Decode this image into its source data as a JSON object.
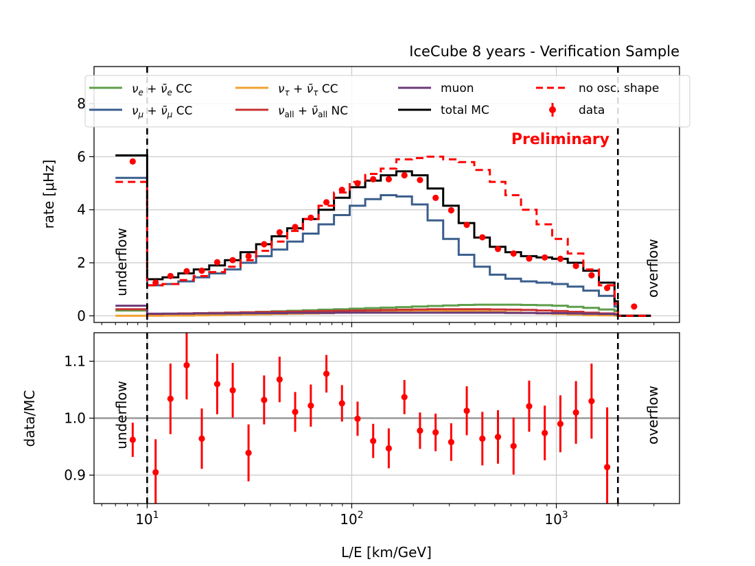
{
  "chart_data": [
    {
      "type": "line",
      "title": "IceCube 8 years - Verification Sample",
      "annotation": "Preliminary",
      "xlabel": "L/E [km/GeV]",
      "ylabel": "rate [μHz]",
      "xscale": "log",
      "xlim": [
        5.5,
        4000
      ],
      "ylim": [
        -0.25,
        9.4
      ],
      "yticks": [
        0,
        2,
        4,
        6,
        8
      ],
      "xticks": [
        {
          "value": 10,
          "base": "10",
          "exp": "1"
        },
        {
          "value": 100,
          "base": "10",
          "exp": "2"
        },
        {
          "value": 1000,
          "base": "10",
          "exp": "3"
        }
      ],
      "grid": true,
      "legend_position": "top",
      "region_labels": {
        "left": "underflow",
        "right": "overflow"
      },
      "region_boundaries": [
        10,
        2000
      ],
      "bin_edges": [
        7,
        10,
        11.9,
        14.2,
        16.9,
        20.1,
        24,
        28.6,
        34.1,
        40.6,
        48.4,
        57.7,
        68.8,
        81.9,
        97.7,
        116.4,
        138.7,
        165.3,
        197,
        234.8,
        279.8,
        333.4,
        397.3,
        473.4,
        564.1,
        672.2,
        801,
        954.5,
        1137.4,
        1355.4,
        1615.1,
        1924.6,
        2000,
        2900
      ],
      "series": [
        {
          "name": "νe + ν̄e CC",
          "color": "#5e9e4a",
          "style": "step",
          "values": [
            0.2,
            0.06,
            0.07,
            0.08,
            0.09,
            0.1,
            0.12,
            0.13,
            0.15,
            0.17,
            0.19,
            0.21,
            0.23,
            0.25,
            0.27,
            0.29,
            0.31,
            0.33,
            0.35,
            0.37,
            0.39,
            0.41,
            0.42,
            0.42,
            0.42,
            0.41,
            0.4,
            0.38,
            0.34,
            0.3,
            0.24,
            0.18,
            0.01
          ]
        },
        {
          "name": "νμ + ν̄μ CC",
          "color": "#3a5e8c",
          "style": "step",
          "values": [
            5.2,
            1.15,
            1.2,
            1.3,
            1.45,
            1.6,
            1.75,
            2.0,
            2.25,
            2.5,
            2.8,
            3.1,
            3.45,
            3.8,
            4.15,
            4.4,
            4.55,
            4.5,
            4.2,
            3.6,
            2.9,
            2.3,
            1.85,
            1.55,
            1.4,
            1.3,
            1.25,
            1.2,
            1.1,
            0.95,
            0.75,
            0.35,
            0.0
          ]
        },
        {
          "name": "ντ + ν̄τ CC",
          "color": "#f0a030",
          "style": "step",
          "values": [
            0.0,
            0.0,
            0.01,
            0.01,
            0.02,
            0.03,
            0.04,
            0.05,
            0.06,
            0.07,
            0.08,
            0.09,
            0.1,
            0.12,
            0.14,
            0.16,
            0.18,
            0.19,
            0.2,
            0.2,
            0.19,
            0.18,
            0.17,
            0.15,
            0.13,
            0.11,
            0.09,
            0.07,
            0.05,
            0.03,
            0.02,
            0.01,
            0.0
          ]
        },
        {
          "name": "νall + ν̄all NC",
          "color": "#c83232",
          "style": "step",
          "values": [
            0.25,
            0.07,
            0.08,
            0.09,
            0.1,
            0.11,
            0.12,
            0.13,
            0.14,
            0.15,
            0.16,
            0.17,
            0.18,
            0.19,
            0.2,
            0.21,
            0.22,
            0.23,
            0.24,
            0.25,
            0.25,
            0.25,
            0.25,
            0.24,
            0.23,
            0.22,
            0.2,
            0.18,
            0.15,
            0.12,
            0.09,
            0.06,
            0.0
          ]
        },
        {
          "name": "muon",
          "color": "#6b3a7a",
          "style": "step",
          "values": [
            0.38,
            0.08,
            0.08,
            0.08,
            0.09,
            0.09,
            0.09,
            0.1,
            0.1,
            0.1,
            0.11,
            0.11,
            0.11,
            0.12,
            0.12,
            0.12,
            0.12,
            0.12,
            0.12,
            0.12,
            0.12,
            0.12,
            0.12,
            0.12,
            0.11,
            0.11,
            0.1,
            0.1,
            0.09,
            0.08,
            0.07,
            0.05,
            0.0
          ]
        },
        {
          "name": "total MC",
          "color": "#000000",
          "style": "step",
          "values": [
            6.05,
            1.38,
            1.45,
            1.6,
            1.75,
            1.9,
            2.1,
            2.4,
            2.7,
            3.0,
            3.3,
            3.65,
            4.0,
            4.45,
            4.85,
            5.1,
            5.3,
            5.45,
            5.3,
            4.8,
            4.15,
            3.5,
            2.95,
            2.6,
            2.4,
            2.25,
            2.2,
            2.15,
            2.0,
            1.7,
            1.25,
            0.55,
            0.0
          ]
        },
        {
          "name": "no osc. shape",
          "color": "#ff0000",
          "style": "dashed-step",
          "values": [
            5.05,
            1.15,
            1.2,
            1.35,
            1.5,
            1.65,
            1.85,
            2.1,
            2.45,
            2.8,
            3.2,
            3.65,
            4.15,
            4.65,
            5.05,
            5.35,
            5.55,
            5.9,
            5.95,
            6.0,
            5.9,
            5.8,
            5.5,
            5.05,
            4.55,
            4.0,
            3.45,
            2.9,
            2.35,
            1.75,
            1.15,
            0.45,
            0.0
          ]
        },
        {
          "name": "data",
          "color": "#ff0000",
          "style": "points",
          "x": [
            8.5,
            11,
            13,
            15.6,
            18.5,
            22,
            26.2,
            31.3,
            37.3,
            44.4,
            52.9,
            63.1,
            75.2,
            89.6,
            106.8,
            127.3,
            151.7,
            180.9,
            215.6,
            257,
            306.3,
            365,
            435,
            518.5,
            618,
            736.6,
            878,
            1046.5,
            1247.3,
            1486.7,
            1772,
            2400
          ],
          "values": [
            5.82,
            1.25,
            1.5,
            1.68,
            1.7,
            2.02,
            2.1,
            2.25,
            2.7,
            3.15,
            3.35,
            3.7,
            4.28,
            4.75,
            5.0,
            5.15,
            5.15,
            5.3,
            5.12,
            4.45,
            3.98,
            3.43,
            2.96,
            2.52,
            2.35,
            2.16,
            2.2,
            2.15,
            1.88,
            1.53,
            1.05,
            0.35
          ]
        }
      ]
    },
    {
      "type": "scatter",
      "xlabel": "L/E [km/GeV]",
      "ylabel": "data/MC",
      "xscale": "log",
      "xlim": [
        5.5,
        4000
      ],
      "ylim": [
        0.85,
        1.15
      ],
      "yticks": [
        0.9,
        1.0,
        1.1
      ],
      "ytick_labels": [
        "0.9",
        "1.0",
        "1.1"
      ],
      "xticks": [
        {
          "value": 10,
          "base": "10",
          "exp": "1"
        },
        {
          "value": 100,
          "base": "10",
          "exp": "2"
        },
        {
          "value": 1000,
          "base": "10",
          "exp": "3"
        }
      ],
      "grid": true,
      "reference_line": 1.0,
      "region_labels": {
        "left": "underflow",
        "right": "overflow"
      },
      "region_boundaries": [
        10,
        2000
      ],
      "series": [
        {
          "name": "data",
          "color": "#ff0000",
          "x": [
            8.5,
            11,
            13,
            15.6,
            18.5,
            22,
            26.2,
            31.3,
            37.3,
            44.4,
            52.9,
            63.1,
            75.2,
            89.6,
            106.8,
            127.3,
            151.7,
            180.9,
            215.6,
            257,
            306.3,
            365,
            435,
            518.5,
            618,
            736.6,
            878,
            1046.5,
            1247.3,
            1486.7,
            1772
          ],
          "values": [
            0.962,
            0.905,
            1.034,
            1.093,
            0.964,
            1.06,
            1.049,
            0.939,
            1.032,
            1.068,
            1.011,
            1.022,
            1.078,
            1.026,
            0.999,
            0.96,
            0.947,
            1.037,
            0.978,
            0.975,
            0.958,
            1.013,
            0.964,
            0.967,
            0.951,
            1.021,
            0.974,
            0.99,
            1.01,
            1.03,
            0.914
          ],
          "errors": [
            0.03,
            0.058,
            0.062,
            0.06,
            0.053,
            0.053,
            0.048,
            0.05,
            0.043,
            0.04,
            0.035,
            0.037,
            0.033,
            0.032,
            0.03,
            0.03,
            0.035,
            0.03,
            0.032,
            0.033,
            0.033,
            0.043,
            0.047,
            0.047,
            0.05,
            0.045,
            0.048,
            0.05,
            0.055,
            0.066,
            0.105
          ]
        }
      ]
    }
  ]
}
